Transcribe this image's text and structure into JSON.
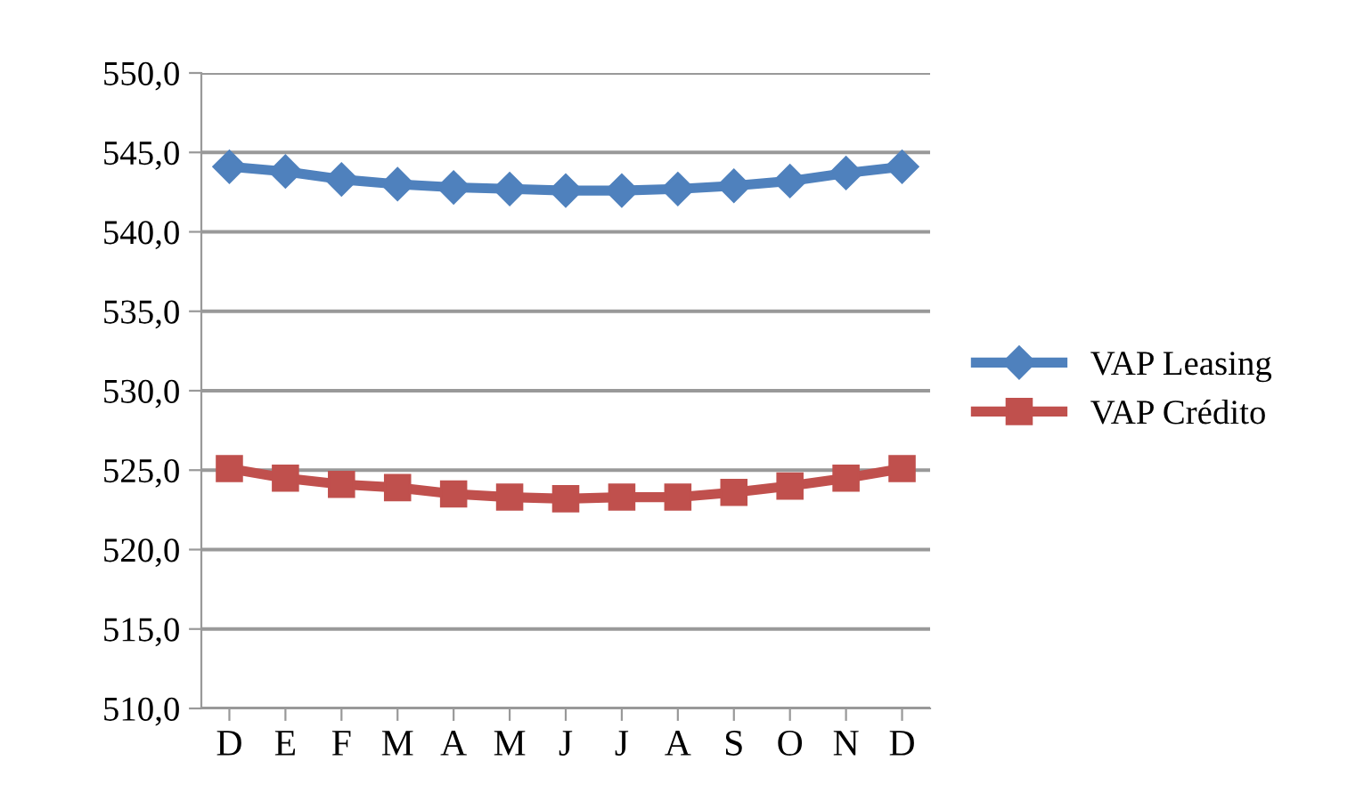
{
  "chart_data": {
    "type": "line",
    "categories": [
      "D",
      "E",
      "F",
      "M",
      "A",
      "M",
      "J",
      "J",
      "A",
      "S",
      "O",
      "N",
      "D"
    ],
    "series": [
      {
        "name": "VAP Leasing",
        "color": "#4f81bd",
        "marker": "diamond",
        "values": [
          544.1,
          543.8,
          543.3,
          543.0,
          542.8,
          542.7,
          542.6,
          542.6,
          542.7,
          542.9,
          543.2,
          543.7,
          544.1
        ]
      },
      {
        "name": "VAP Crédito",
        "color": "#c0504d",
        "marker": "square",
        "values": [
          525.1,
          524.5,
          524.1,
          523.9,
          523.5,
          523.3,
          523.2,
          523.3,
          523.3,
          523.6,
          524.0,
          524.5,
          525.1
        ]
      }
    ],
    "ylim": [
      510,
      550
    ],
    "yticks": [
      {
        "value": 510,
        "label": "510,0"
      },
      {
        "value": 515,
        "label": "515,0"
      },
      {
        "value": 520,
        "label": "520,0"
      },
      {
        "value": 525,
        "label": "525,0"
      },
      {
        "value": 530,
        "label": "530,0"
      },
      {
        "value": 535,
        "label": "535,0"
      },
      {
        "value": 540,
        "label": "540,0"
      },
      {
        "value": 545,
        "label": "545,0"
      },
      {
        "value": 550,
        "label": "550,0"
      }
    ],
    "grid": "y",
    "legend": "right",
    "line_style": "solid"
  }
}
